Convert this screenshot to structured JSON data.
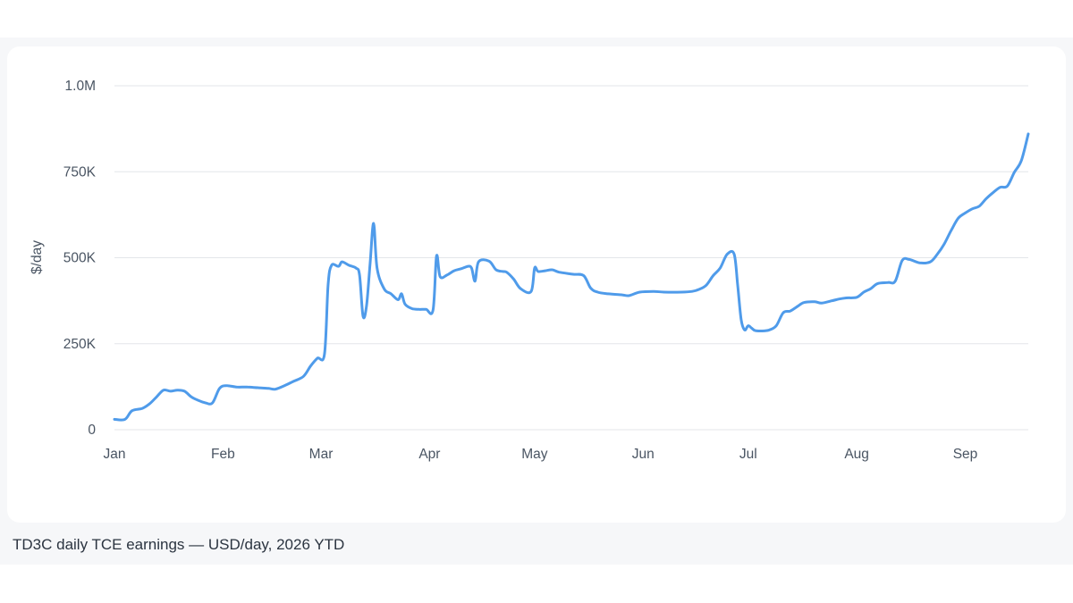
{
  "caption": "TD3C daily TCE earnings — USD/day, 2026 YTD",
  "colors": {
    "line": "#4f9bea",
    "grid": "#e3e6ea",
    "text": "#4a5563",
    "card": "#ffffff",
    "band": "#f6f7f9"
  },
  "chart_data": {
    "type": "line",
    "title": "",
    "xlabel": "",
    "ylabel": "$/day",
    "ylim": [
      0,
      1000000
    ],
    "grid": true,
    "y_ticks": [
      {
        "value": 0,
        "label": "0"
      },
      {
        "value": 250000,
        "label": "250K"
      },
      {
        "value": 500000,
        "label": "500K"
      },
      {
        "value": 750000,
        "label": "750K"
      },
      {
        "value": 1000000,
        "label": "1.0M"
      }
    ],
    "x_ticks": [
      {
        "value": "2026-01-01",
        "label": "Jan"
      },
      {
        "value": "2026-02-01",
        "label": "Feb"
      },
      {
        "value": "2026-03-01",
        "label": "Mar"
      },
      {
        "value": "2026-04-01",
        "label": "Apr"
      },
      {
        "value": "2026-05-01",
        "label": "May"
      },
      {
        "value": "2026-06-01",
        "label": "Jun"
      },
      {
        "value": "2026-07-01",
        "label": "Jul"
      },
      {
        "value": "2026-08-01",
        "label": "Aug"
      },
      {
        "value": "2026-09-01",
        "label": "Sep"
      }
    ],
    "xlim": [
      "2026-01-01",
      "2026-09-10"
    ],
    "series": [
      {
        "points": [
          [
            "2026-01-01",
            30000
          ],
          [
            "2026-01-04",
            30000
          ],
          [
            "2026-01-06",
            55000
          ],
          [
            "2026-01-09",
            62000
          ],
          [
            "2026-01-11",
            75000
          ],
          [
            "2026-01-13",
            95000
          ],
          [
            "2026-01-15",
            115000
          ],
          [
            "2026-01-17",
            112000
          ],
          [
            "2026-01-19",
            115000
          ],
          [
            "2026-01-21",
            112000
          ],
          [
            "2026-01-23",
            95000
          ],
          [
            "2026-01-25",
            85000
          ],
          [
            "2026-01-27",
            78000
          ],
          [
            "2026-01-29",
            78000
          ],
          [
            "2026-01-31",
            120000
          ],
          [
            "2026-02-02",
            128000
          ],
          [
            "2026-02-05",
            124000
          ],
          [
            "2026-02-08",
            124000
          ],
          [
            "2026-02-11",
            122000
          ],
          [
            "2026-02-14",
            120000
          ],
          [
            "2026-02-16",
            118000
          ],
          [
            "2026-02-19",
            130000
          ],
          [
            "2026-02-21",
            140000
          ],
          [
            "2026-02-24",
            155000
          ],
          [
            "2026-02-26",
            185000
          ],
          [
            "2026-02-28",
            208000
          ],
          [
            "2026-03-02",
            220000
          ],
          [
            "2026-03-03",
            420000
          ],
          [
            "2026-03-04",
            478000
          ],
          [
            "2026-03-06",
            475000
          ],
          [
            "2026-03-07",
            488000
          ],
          [
            "2026-03-09",
            478000
          ],
          [
            "2026-03-11",
            470000
          ],
          [
            "2026-03-12",
            450000
          ],
          [
            "2026-03-13",
            330000
          ],
          [
            "2026-03-14",
            360000
          ],
          [
            "2026-03-15",
            480000
          ],
          [
            "2026-03-16",
            600000
          ],
          [
            "2026-03-17",
            470000
          ],
          [
            "2026-03-19",
            410000
          ],
          [
            "2026-03-21",
            395000
          ],
          [
            "2026-03-23",
            378000
          ],
          [
            "2026-03-24",
            395000
          ],
          [
            "2026-03-25",
            365000
          ],
          [
            "2026-03-27",
            352000
          ],
          [
            "2026-03-29",
            350000
          ],
          [
            "2026-03-31",
            350000
          ],
          [
            "2026-04-02",
            348000
          ],
          [
            "2026-04-03",
            505000
          ],
          [
            "2026-04-04",
            445000
          ],
          [
            "2026-04-06",
            450000
          ],
          [
            "2026-04-08",
            462000
          ],
          [
            "2026-04-10",
            468000
          ],
          [
            "2026-04-12",
            475000
          ],
          [
            "2026-04-13",
            470000
          ],
          [
            "2026-04-14",
            432000
          ],
          [
            "2026-04-15",
            488000
          ],
          [
            "2026-04-18",
            490000
          ],
          [
            "2026-04-20",
            465000
          ],
          [
            "2026-04-22",
            460000
          ],
          [
            "2026-04-23",
            458000
          ],
          [
            "2026-04-25",
            438000
          ],
          [
            "2026-04-27",
            410000
          ],
          [
            "2026-04-30",
            402000
          ],
          [
            "2026-05-01",
            470000
          ],
          [
            "2026-05-02",
            460000
          ],
          [
            "2026-05-04",
            462000
          ],
          [
            "2026-05-06",
            465000
          ],
          [
            "2026-05-08",
            458000
          ],
          [
            "2026-05-12",
            452000
          ],
          [
            "2026-05-15",
            448000
          ],
          [
            "2026-05-17",
            412000
          ],
          [
            "2026-05-19",
            400000
          ],
          [
            "2026-05-22",
            395000
          ],
          [
            "2026-05-26",
            392000
          ],
          [
            "2026-05-28",
            390000
          ],
          [
            "2026-05-31",
            400000
          ],
          [
            "2026-06-04",
            402000
          ],
          [
            "2026-06-07",
            400000
          ],
          [
            "2026-06-12",
            400000
          ],
          [
            "2026-06-15",
            402000
          ],
          [
            "2026-06-17",
            408000
          ],
          [
            "2026-06-19",
            420000
          ],
          [
            "2026-06-21",
            448000
          ],
          [
            "2026-06-23",
            470000
          ],
          [
            "2026-06-25",
            510000
          ],
          [
            "2026-06-27",
            510000
          ],
          [
            "2026-06-28",
            420000
          ],
          [
            "2026-06-29",
            320000
          ],
          [
            "2026-06-30",
            290000
          ],
          [
            "2026-07-01",
            302000
          ],
          [
            "2026-07-02",
            295000
          ],
          [
            "2026-07-03",
            288000
          ],
          [
            "2026-07-05",
            287000
          ],
          [
            "2026-07-07",
            290000
          ],
          [
            "2026-07-09",
            302000
          ],
          [
            "2026-07-11",
            340000
          ],
          [
            "2026-07-13",
            345000
          ],
          [
            "2026-07-15",
            358000
          ],
          [
            "2026-07-17",
            370000
          ],
          [
            "2026-07-20",
            372000
          ],
          [
            "2026-07-22",
            368000
          ],
          [
            "2026-07-25",
            375000
          ],
          [
            "2026-07-27",
            380000
          ],
          [
            "2026-07-29",
            383000
          ],
          [
            "2026-08-01",
            385000
          ],
          [
            "2026-08-03",
            400000
          ],
          [
            "2026-08-05",
            410000
          ],
          [
            "2026-08-07",
            425000
          ],
          [
            "2026-08-10",
            428000
          ],
          [
            "2026-08-12",
            432000
          ],
          [
            "2026-08-14",
            492000
          ],
          [
            "2026-08-16",
            495000
          ],
          [
            "2026-08-19",
            485000
          ],
          [
            "2026-08-22",
            488000
          ],
          [
            "2026-08-24",
            510000
          ],
          [
            "2026-08-26",
            540000
          ],
          [
            "2026-08-28",
            580000
          ],
          [
            "2026-08-30",
            615000
          ],
          [
            "2026-09-01",
            630000
          ],
          [
            "2026-09-03",
            642000
          ],
          [
            "2026-09-05",
            650000
          ],
          [
            "2026-09-07",
            672000
          ],
          [
            "2026-09-09",
            690000
          ],
          [
            "2026-09-11",
            705000
          ],
          [
            "2026-09-13",
            708000
          ],
          [
            "2026-09-15",
            748000
          ],
          [
            "2026-09-17",
            782000
          ],
          [
            "2026-09-19",
            860000
          ]
        ]
      }
    ]
  }
}
